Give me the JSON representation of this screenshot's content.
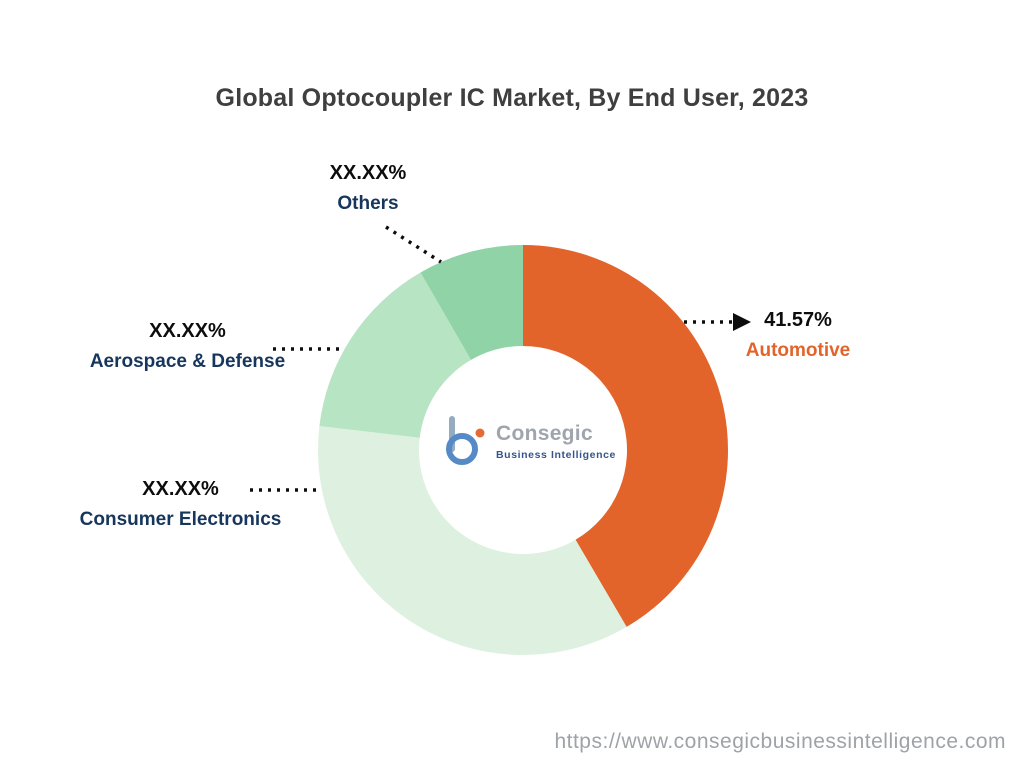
{
  "title": "Global Optocoupler IC Market, By End User, 2023",
  "chart_data": {
    "type": "pie",
    "donut": true,
    "title": "Global Optocoupler IC Market, By End User, 2023",
    "start_angle_deg": 0,
    "direction": "clockwise",
    "legend_position": "none",
    "segments": [
      {
        "label": "Automotive",
        "value_label": "41.57%",
        "value_pct": 41.57,
        "color": "#e2642b",
        "label_color": "#e2642b"
      },
      {
        "label": "Consumer Electronics",
        "value_label": "XX.XX%",
        "value_pct": 35.3,
        "color": "#def1e0",
        "label_color": "#17365d"
      },
      {
        "label": "Aerospace & Defense",
        "value_label": "XX.XX%",
        "value_pct": 14.8,
        "color": "#b7e4c2",
        "label_color": "#17365d"
      },
      {
        "label": "Others",
        "value_label": "XX.XX%",
        "value_pct": 8.33,
        "color": "#8fd3a7",
        "label_color": "#17365d"
      }
    ]
  },
  "logo": {
    "name": "Consegic",
    "tagline": "Business Intelligence"
  },
  "footer": {
    "url": "https://www.consegicbusinessintelligence.com"
  }
}
